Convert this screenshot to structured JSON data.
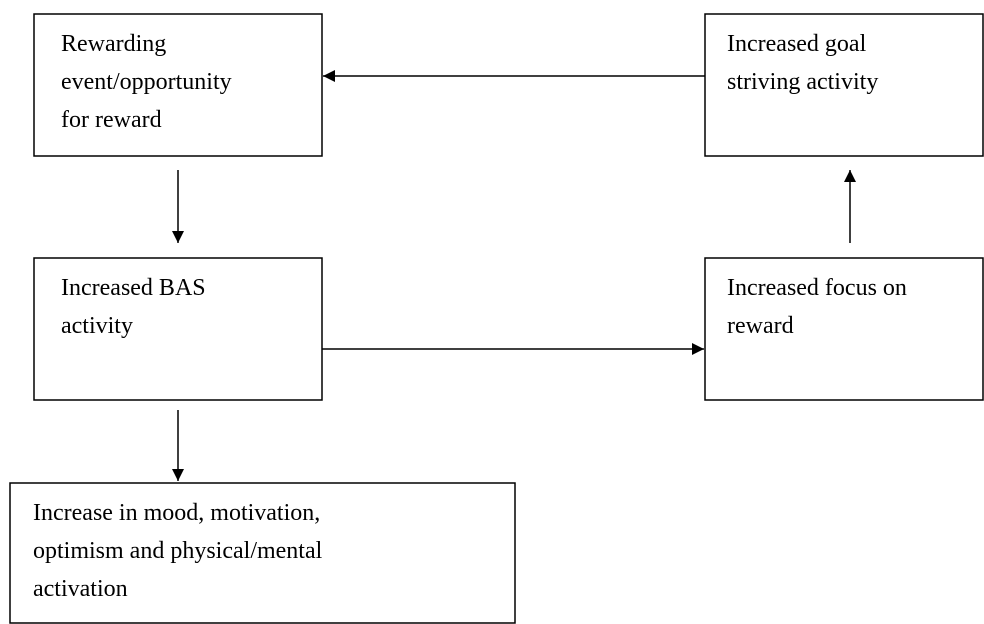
{
  "nodes": [
    {
      "lines": [
        "Rewarding",
        "event/opportunity",
        "for reward"
      ]
    },
    {
      "lines": [
        "Increased goal",
        "striving activity"
      ]
    },
    {
      "lines": [
        "Increased BAS",
        "activity"
      ]
    },
    {
      "lines": [
        "Increased focus on",
        "reward"
      ]
    },
    {
      "lines": [
        "Increase in mood, motivation,",
        "optimism and physical/mental",
        "activation"
      ]
    }
  ]
}
